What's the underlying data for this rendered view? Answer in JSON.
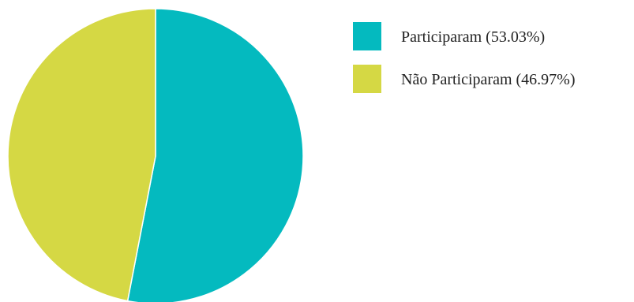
{
  "chart_data": {
    "type": "pie",
    "slices": [
      {
        "label": "Participaram (53.03%)",
        "value": 53.03,
        "color": "#04BABF"
      },
      {
        "label": "Não Participaram (46.97%)",
        "value": 46.97,
        "color": "#D5D844"
      }
    ],
    "start": "top",
    "direction": "clockwise",
    "legend": "top-right"
  }
}
